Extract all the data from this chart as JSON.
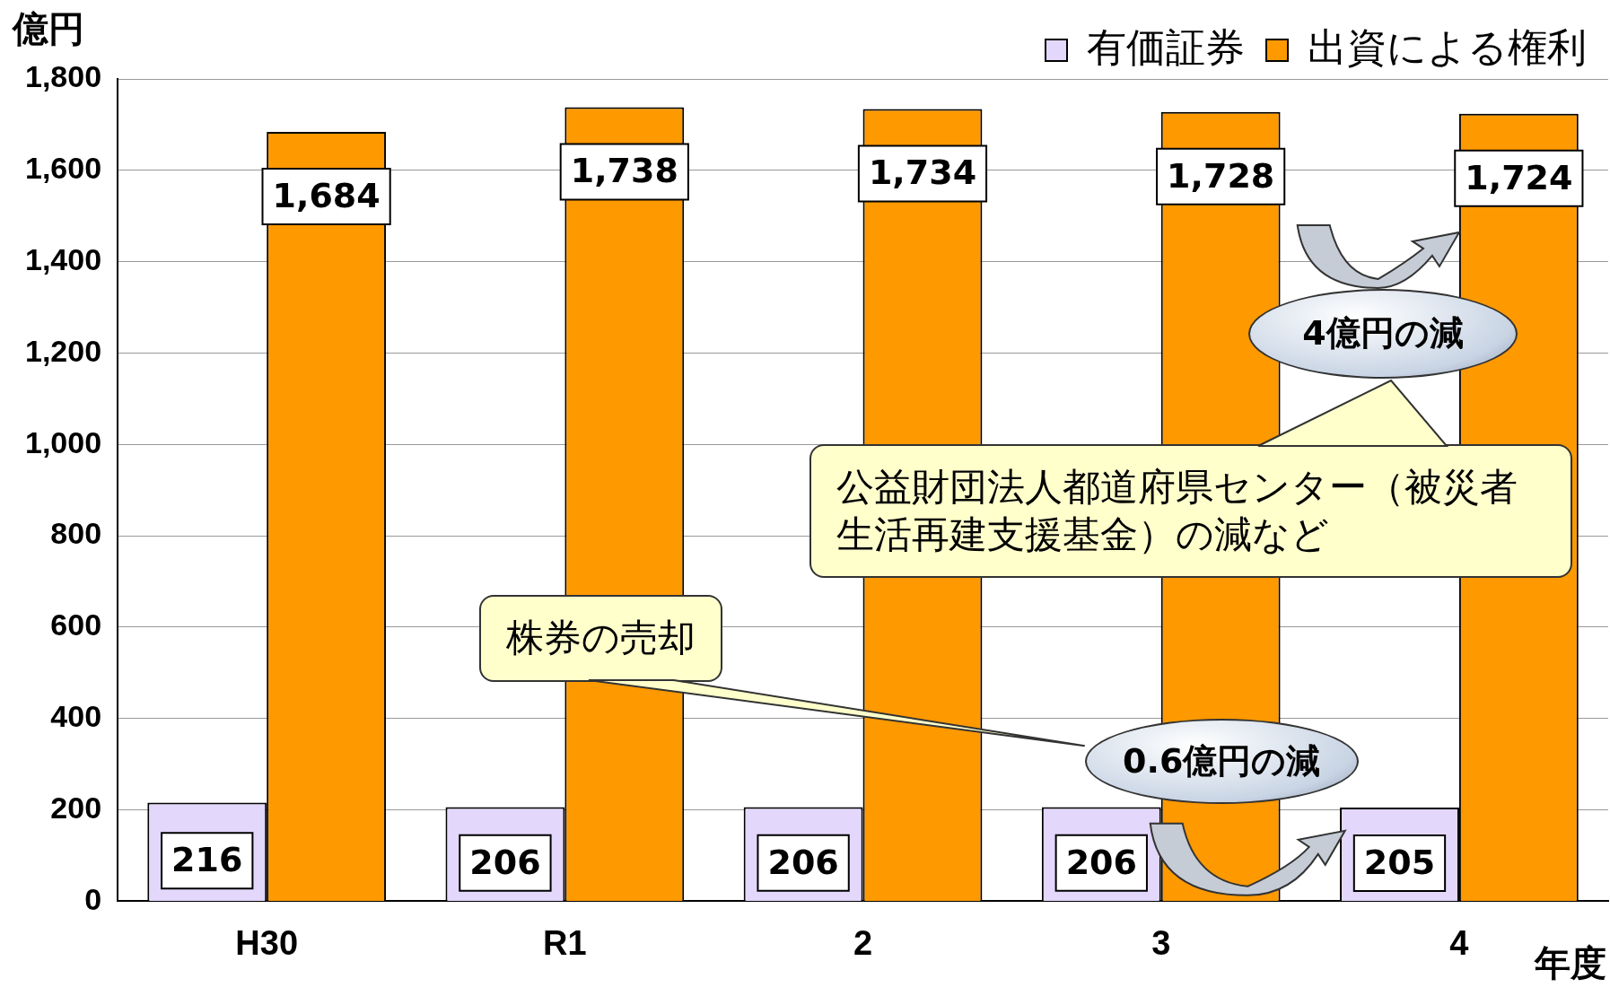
{
  "chart_data": {
    "type": "bar",
    "xlabel": "年度",
    "ylabel": "億円",
    "categories": [
      "H30",
      "R1",
      "2",
      "3",
      "4"
    ],
    "series": [
      {
        "name": "有価証券",
        "color": "#e3d7fb",
        "values": [
          216,
          206,
          206,
          206,
          205
        ],
        "value_labels": [
          "216",
          "206",
          "206",
          "206",
          "205"
        ]
      },
      {
        "name": "出資による権利",
        "color": "#ff9900",
        "values": [
          1684,
          1738,
          1734,
          1728,
          1724
        ],
        "value_labels": [
          "1,684",
          "1,738",
          "1,734",
          "1,728",
          "1,724"
        ]
      }
    ],
    "ylim": [
      0,
      1800
    ],
    "yticks": [
      0,
      200,
      400,
      600,
      800,
      {
        "value": 1000,
        "label": "1,000"
      },
      {
        "value": 1200,
        "label": "1,200"
      },
      {
        "value": 1400,
        "label": "1,400"
      },
      {
        "value": 1600,
        "label": "1,600"
      },
      {
        "value": 1800,
        "label": "1,800"
      }
    ],
    "grid": "y",
    "legend": "top right",
    "annotations": [
      "4億円の減",
      "公益財団法人都道府県センター（被災者生活再建支援基金）の減など",
      "株券の売却",
      "0.6億円の減"
    ]
  }
}
